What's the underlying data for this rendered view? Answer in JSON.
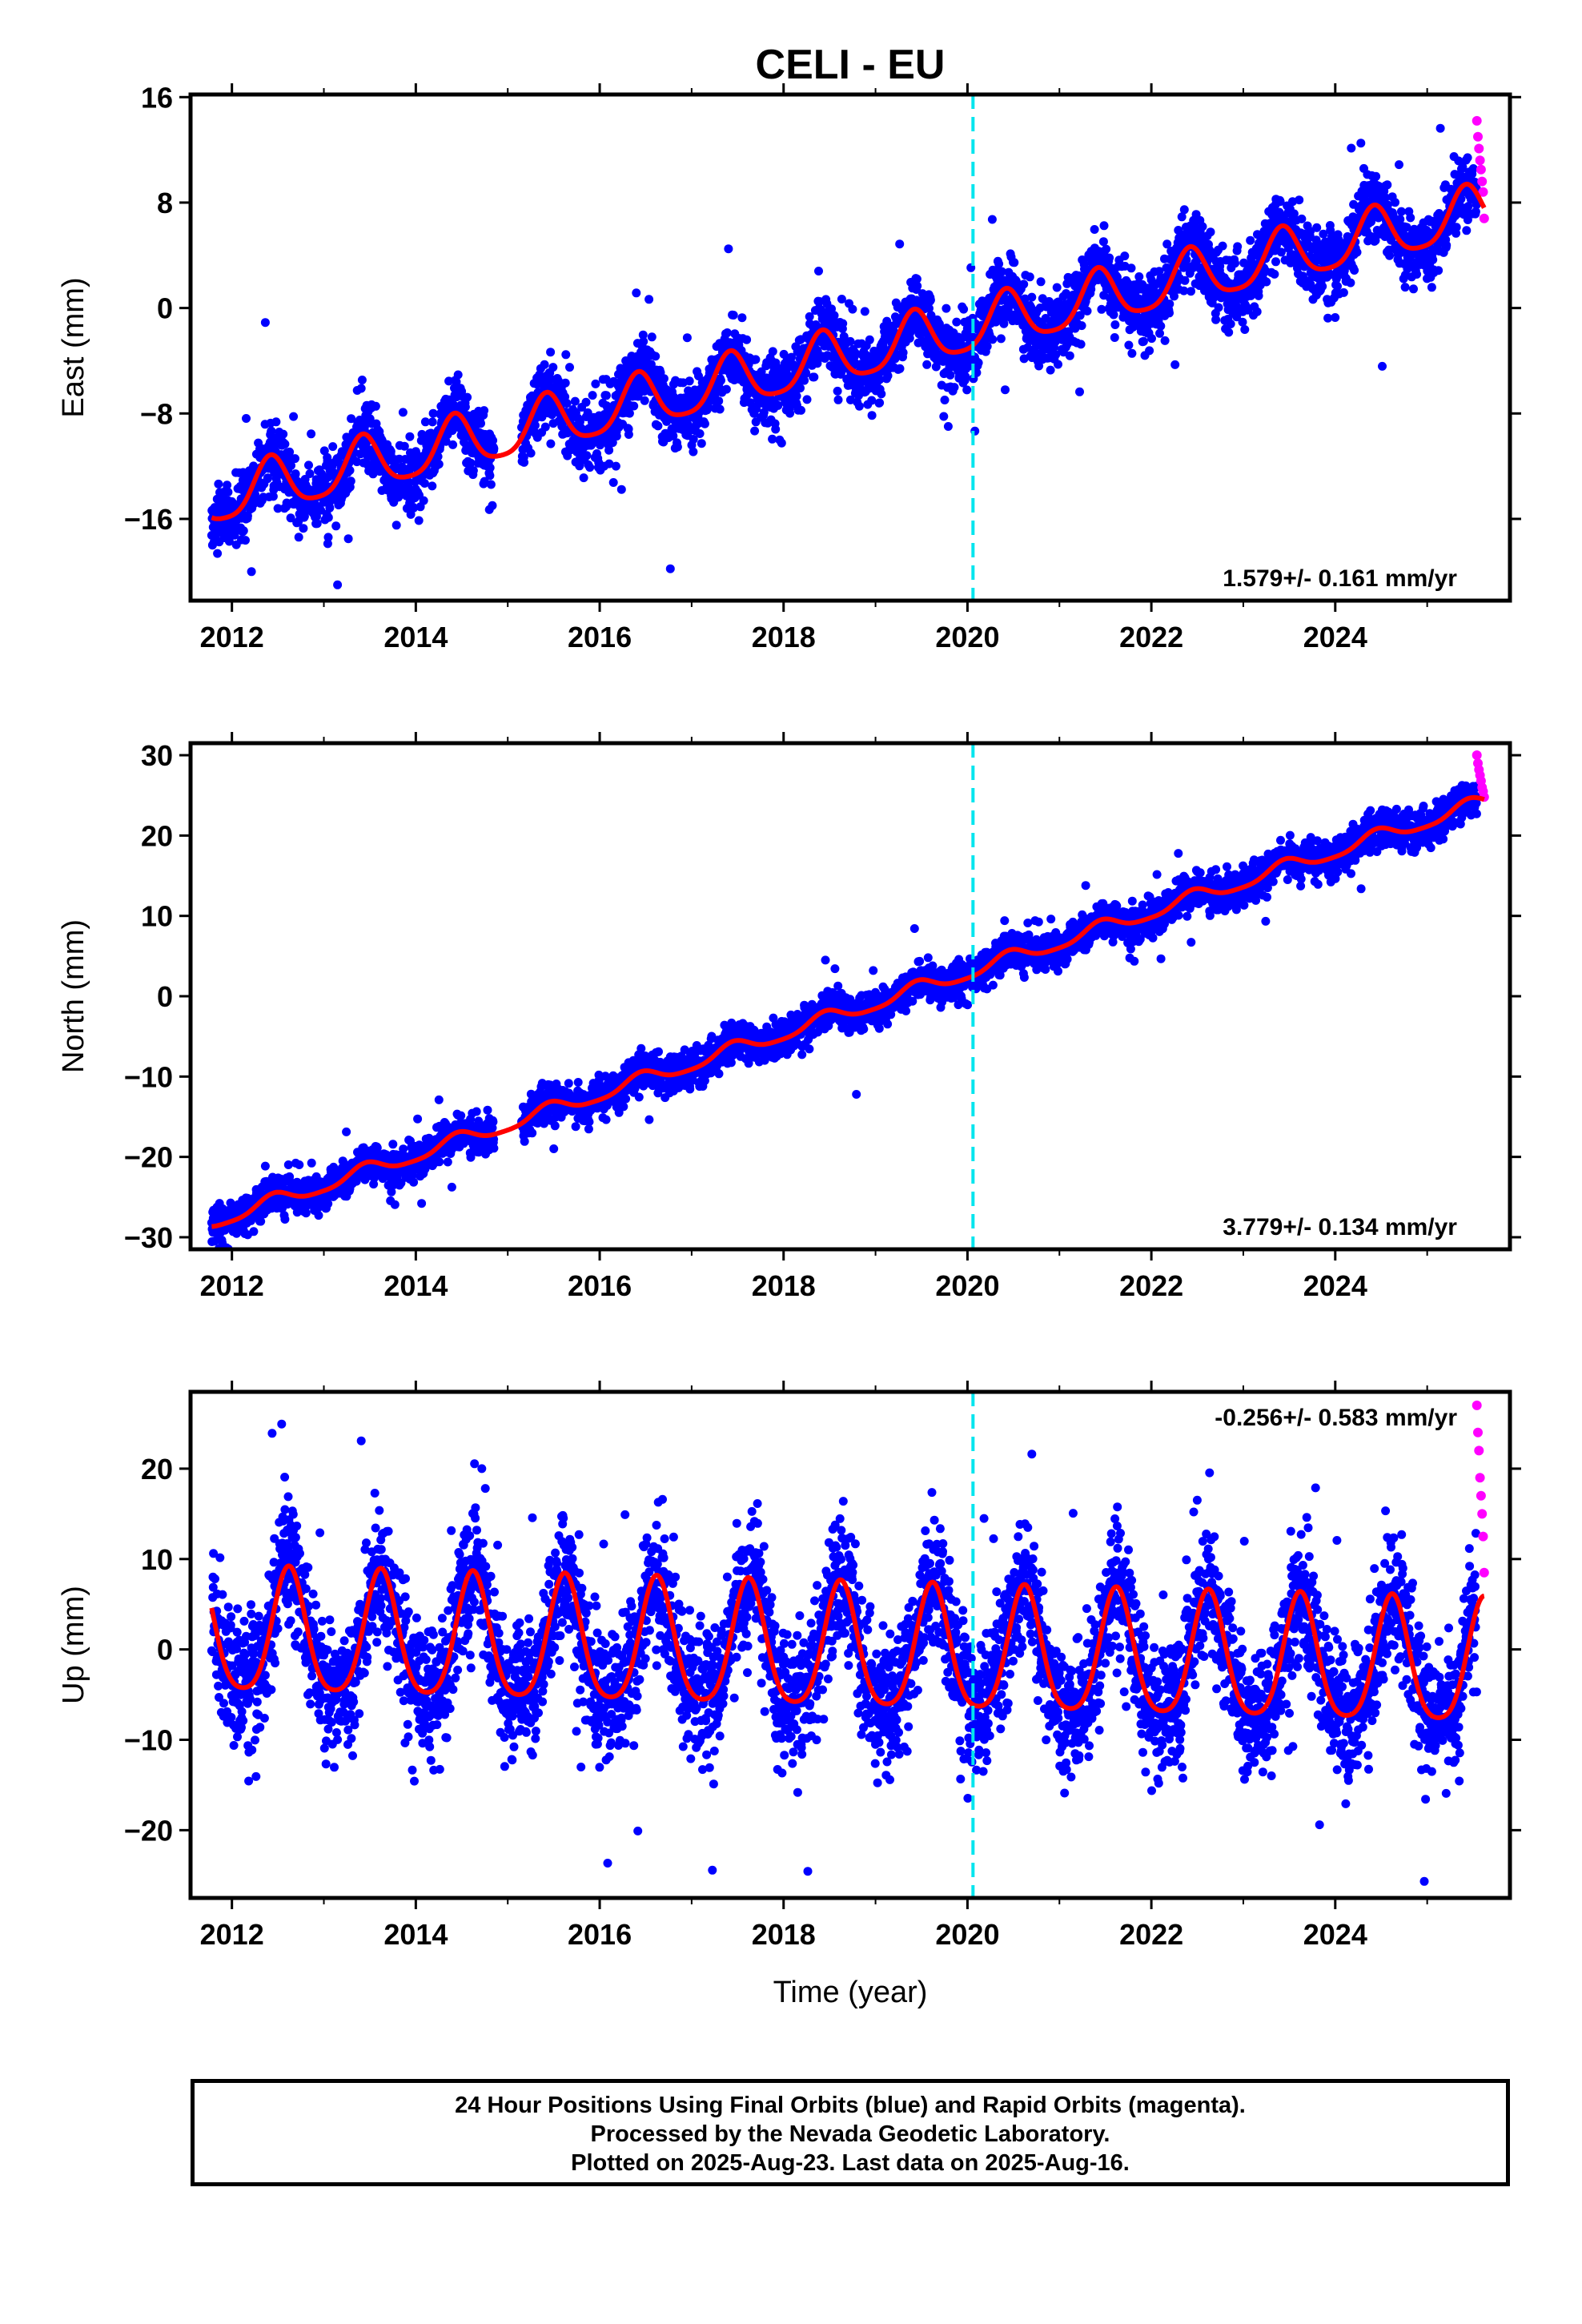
{
  "title": "CELI - EU",
  "colors": {
    "final_orbits": "#0000ff",
    "rapid_orbits": "#ff00ff",
    "model_fit": "#ff0000",
    "event_line": "#00e5ee",
    "axes": "#000000"
  },
  "caption": {
    "line1": "24 Hour Positions Using Final Orbits (blue) and Rapid Orbits (magenta).",
    "line2": "Processed by the Nevada Geodetic Laboratory.",
    "line3": "Plotted on 2025-Aug-23. Last data on 2025-Aug-16."
  },
  "chart_data": [
    {
      "type": "scatter",
      "component": "east",
      "ylabel": "East (mm)",
      "xlabel": "",
      "xlim": [
        2011.55,
        2025.9
      ],
      "ylim": [
        -22.2,
        16.2
      ],
      "xticks": [
        "2012",
        "2014",
        "2016",
        "2018",
        "2020",
        "2022",
        "2024"
      ],
      "yticks": [
        "-16",
        "-8",
        "0",
        "8",
        "16"
      ],
      "rate_label": "1.579+/- 0.161 mm/yr",
      "rate_label_position": "bottom-right",
      "event_line_x": 2020.06,
      "fit_model": {
        "intercept_at_2012": -14.2,
        "rate_mm_per_yr": 1.579,
        "annual_amp": 2.0,
        "annual_peak": 2012.42,
        "semiannual_amp": 0.4,
        "scatter_sd": 1.3
      },
      "data_span": [
        2011.78,
        2025.62
      ],
      "rapid_span": [
        2025.54,
        2025.62
      ],
      "rapid_values": [
        14.2,
        13.0,
        12.1,
        11.2,
        10.5,
        9.6,
        8.8,
        6.8
      ]
    },
    {
      "type": "scatter",
      "component": "north",
      "ylabel": "North (mm)",
      "xlabel": "",
      "xlim": [
        2011.55,
        2025.9
      ],
      "ylim": [
        -31.5,
        31.5
      ],
      "xticks": [
        "2012",
        "2014",
        "2016",
        "2018",
        "2020",
        "2022",
        "2024"
      ],
      "yticks": [
        "-30",
        "-20",
        "-10",
        "0",
        "10",
        "20",
        "30"
      ],
      "rate_label": "3.779+/- 0.134 mm/yr",
      "rate_label_position": "bottom-right",
      "event_line_x": 2020.06,
      "fit_model": {
        "intercept_at_2012": -27.3,
        "rate_mm_per_yr": 3.779,
        "annual_amp": 0.9,
        "annual_peak": 2012.45,
        "semiannual_amp": 0.2,
        "scatter_sd": 1.1
      },
      "data_span": [
        2011.78,
        2025.62
      ],
      "rapid_span": [
        2025.54,
        2025.62
      ],
      "rapid_values": [
        30.0,
        29.0,
        28.2,
        27.5,
        26.8,
        26.0,
        25.5,
        24.8
      ]
    },
    {
      "type": "scatter",
      "component": "up",
      "ylabel": "Up (mm)",
      "xlabel": "Time (year)",
      "xlim": [
        2011.55,
        2025.9
      ],
      "ylim": [
        -27.5,
        28.5
      ],
      "xticks": [
        "2012",
        "2014",
        "2016",
        "2018",
        "2020",
        "2022",
        "2024"
      ],
      "yticks": [
        "-20",
        "-10",
        "0",
        "10",
        "20"
      ],
      "rate_label": "-0.256+/- 0.583 mm/yr",
      "rate_label_position": "top-right",
      "event_line_x": 2020.06,
      "fit_model": {
        "intercept_at_2012": 1.4,
        "rate_mm_per_yr": -0.256,
        "annual_amp": 6.8,
        "annual_peak": 2012.62,
        "semiannual_amp": 1.2,
        "scatter_sd": 3.6
      },
      "data_span": [
        2011.78,
        2025.62
      ],
      "rapid_span": [
        2025.54,
        2025.62
      ],
      "rapid_values": [
        27.0,
        24.0,
        22.0,
        19.0,
        17.0,
        15.0,
        12.5,
        8.5
      ]
    }
  ]
}
